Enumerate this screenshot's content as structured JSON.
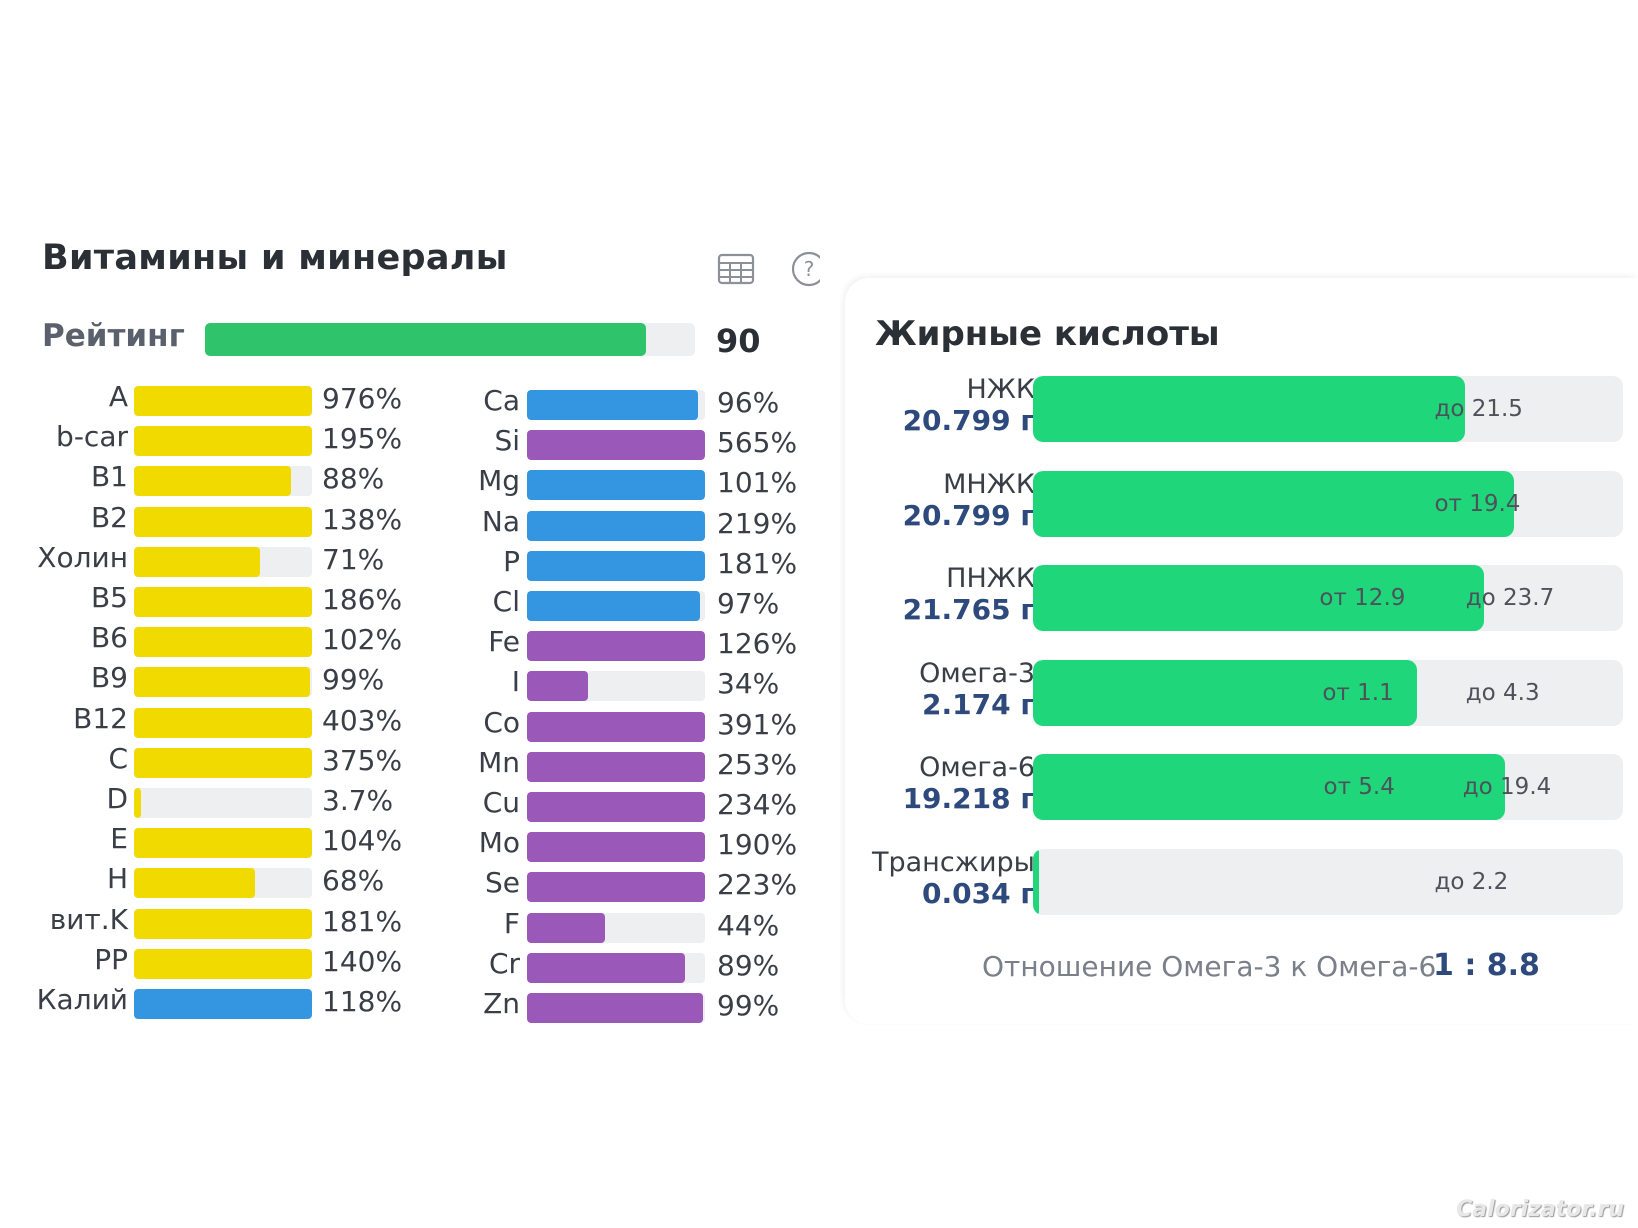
{
  "vitamins_minerals": {
    "title": "Витамины и минералы",
    "rating": {
      "label": "Рейтинг",
      "value": "90",
      "fill": 0.9
    },
    "vitamins": [
      {
        "name": "A",
        "pct": "976%",
        "fill": 1.0,
        "color": "#f0da00"
      },
      {
        "name": "b-car",
        "pct": "195%",
        "fill": 1.0,
        "color": "#f0da00"
      },
      {
        "name": "B1",
        "pct": "88%",
        "fill": 0.88,
        "color": "#f0da00"
      },
      {
        "name": "B2",
        "pct": "138%",
        "fill": 1.0,
        "color": "#f0da00"
      },
      {
        "name": "Холин",
        "pct": "71%",
        "fill": 0.71,
        "color": "#f0da00"
      },
      {
        "name": "B5",
        "pct": "186%",
        "fill": 1.0,
        "color": "#f0da00"
      },
      {
        "name": "B6",
        "pct": "102%",
        "fill": 1.0,
        "color": "#f0da00"
      },
      {
        "name": "B9",
        "pct": "99%",
        "fill": 0.99,
        "color": "#f0da00"
      },
      {
        "name": "B12",
        "pct": "403%",
        "fill": 1.0,
        "color": "#f0da00"
      },
      {
        "name": "C",
        "pct": "375%",
        "fill": 1.0,
        "color": "#f0da00"
      },
      {
        "name": "D",
        "pct": "3.7%",
        "fill": 0.037,
        "color": "#f0da00"
      },
      {
        "name": "E",
        "pct": "104%",
        "fill": 1.0,
        "color": "#f0da00"
      },
      {
        "name": "H",
        "pct": "68%",
        "fill": 0.68,
        "color": "#f0da00"
      },
      {
        "name": "вит.K",
        "pct": "181%",
        "fill": 1.0,
        "color": "#f0da00"
      },
      {
        "name": "PP",
        "pct": "140%",
        "fill": 1.0,
        "color": "#f0da00"
      },
      {
        "name": "Калий",
        "pct": "118%",
        "fill": 1.0,
        "color": "#3496e0"
      }
    ],
    "minerals": [
      {
        "name": "Ca",
        "pct": "96%",
        "fill": 0.96,
        "color": "#3496e0"
      },
      {
        "name": "Si",
        "pct": "565%",
        "fill": 1.0,
        "color": "#9a59b8"
      },
      {
        "name": "Mg",
        "pct": "101%",
        "fill": 1.0,
        "color": "#3496e0"
      },
      {
        "name": "Na",
        "pct": "219%",
        "fill": 1.0,
        "color": "#3496e0"
      },
      {
        "name": "P",
        "pct": "181%",
        "fill": 1.0,
        "color": "#3496e0"
      },
      {
        "name": "Cl",
        "pct": "97%",
        "fill": 0.97,
        "color": "#3496e0"
      },
      {
        "name": "Fe",
        "pct": "126%",
        "fill": 1.0,
        "color": "#9a59b8"
      },
      {
        "name": "I",
        "pct": "34%",
        "fill": 0.34,
        "color": "#9a59b8"
      },
      {
        "name": "Co",
        "pct": "391%",
        "fill": 1.0,
        "color": "#9a59b8"
      },
      {
        "name": "Mn",
        "pct": "253%",
        "fill": 1.0,
        "color": "#9a59b8"
      },
      {
        "name": "Cu",
        "pct": "234%",
        "fill": 1.0,
        "color": "#9a59b8"
      },
      {
        "name": "Mo",
        "pct": "190%",
        "fill": 1.0,
        "color": "#9a59b8"
      },
      {
        "name": "Se",
        "pct": "223%",
        "fill": 1.0,
        "color": "#9a59b8"
      },
      {
        "name": "F",
        "pct": "44%",
        "fill": 0.44,
        "color": "#9a59b8"
      },
      {
        "name": "Cr",
        "pct": "89%",
        "fill": 0.89,
        "color": "#9a59b8"
      },
      {
        "name": "Zn",
        "pct": "99%",
        "fill": 0.99,
        "color": "#9a59b8"
      }
    ],
    "icons": {
      "table": "table-icon",
      "help": "help-icon"
    }
  },
  "fatty_acids": {
    "title": "Жирные кислоты",
    "rows": [
      {
        "name": "НЖК",
        "amount": "20.799 г",
        "fill": 0.733,
        "marks": [
          {
            "text": "до 21.5",
            "pos": 0.755
          }
        ]
      },
      {
        "name": "МНЖК",
        "amount": "20.799 г",
        "fill": 0.815,
        "marks": [
          {
            "text": "от 19.4",
            "pos": 0.755
          }
        ]
      },
      {
        "name": "ПНЖК",
        "amount": "21.765 г",
        "fill": 0.765,
        "marks": [
          {
            "text": "от 12.9",
            "pos": 0.56
          },
          {
            "text": "до 23.7",
            "pos": 0.808
          }
        ]
      },
      {
        "name": "Омега-3",
        "amount": "2.174 г",
        "fill": 0.65,
        "marks": [
          {
            "text": "от 1.1",
            "pos": 0.565
          },
          {
            "text": "до 4.3",
            "pos": 0.808
          }
        ]
      },
      {
        "name": "Омега-6",
        "amount": "19.218 г",
        "fill": 0.8,
        "marks": [
          {
            "text": "от 5.4",
            "pos": 0.567
          },
          {
            "text": "до 19.4",
            "pos": 0.803
          }
        ]
      },
      {
        "name": "Трансжиры",
        "amount": "0.034 г",
        "fill": 0.01,
        "marks": [
          {
            "text": "до 2.2",
            "pos": 0.755
          }
        ]
      }
    ],
    "ratio_label": "Отношение Омега-3 к Омега-6",
    "ratio_value": "1 : 8.8",
    "accent_color": "#1fd77a"
  },
  "watermark": "Calorizator.ru"
}
